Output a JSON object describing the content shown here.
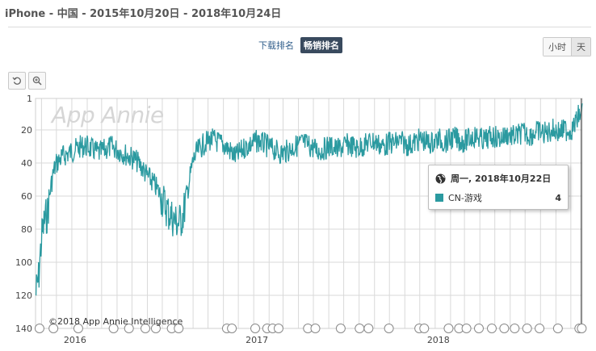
{
  "header": {
    "title": "iPhone - 中国 - 2015年10月20日 - 2018年10月24日"
  },
  "rank_tabs": [
    {
      "label": "下载排名",
      "active": false
    },
    {
      "label": "畅销排名",
      "active": true
    }
  ],
  "time_toggle": [
    {
      "label": "小时",
      "selected": false
    },
    {
      "label": "天",
      "selected": true
    }
  ],
  "toolbar": {
    "reset_icon": "reset-icon",
    "zoom_icon": "zoom-icon"
  },
  "watermark": "App Annie",
  "copyright": "©2018 App Annie Intelligence",
  "tooltip": {
    "date": "周一, 2018年10月22日",
    "series_name": "CN-游戏",
    "value": "4",
    "icon": "globe-icon"
  },
  "colors": {
    "series": "#2b9aa0",
    "grid": "#d9d9d9",
    "axis": "#cfcfcf",
    "tooltip_border": "#bdbdbd"
  },
  "chart_data": {
    "type": "line",
    "series": [
      {
        "name": "CN-游戏",
        "start": "2015-10-20",
        "end": "2018-10-24",
        "ranks": [
          120,
          110,
          85,
          75,
          70,
          55,
          45,
          40,
          38,
          36,
          35,
          34,
          33,
          32,
          31,
          30,
          30,
          30,
          31,
          32,
          33,
          34,
          33,
          32,
          31,
          30,
          31,
          32,
          33,
          34,
          35,
          36,
          37,
          38,
          40,
          42,
          45,
          48,
          50,
          52,
          55,
          58,
          62,
          66,
          70,
          72,
          75,
          76,
          75,
          70,
          60,
          50,
          40,
          35,
          32,
          30,
          28,
          27,
          26,
          26,
          27,
          28,
          29,
          30,
          32,
          34,
          36,
          35,
          33,
          31,
          30,
          29,
          28,
          27,
          27,
          28,
          29,
          30,
          31,
          32,
          33,
          34,
          34,
          33,
          32,
          31,
          30,
          29,
          28,
          28,
          29,
          30,
          31,
          32,
          33,
          32,
          31,
          30,
          30,
          31,
          32,
          31,
          30,
          29,
          29,
          30,
          31,
          31,
          30,
          29,
          28,
          27,
          27,
          28,
          29,
          30,
          29,
          28,
          28,
          28,
          27,
          27,
          28,
          29,
          29,
          28,
          27,
          26,
          26,
          27,
          28,
          28,
          27,
          26,
          26,
          27,
          27,
          26,
          25,
          25,
          26,
          27,
          27,
          26,
          25,
          24,
          24,
          25,
          26,
          26,
          25,
          24,
          24,
          25,
          25,
          24,
          23,
          23,
          24,
          24,
          23,
          22,
          22,
          23,
          23,
          22,
          21,
          21,
          22,
          22,
          21,
          20,
          20,
          21,
          21,
          20,
          20,
          20,
          19,
          15,
          10,
          4
        ],
        "rank_dates": "weekly samples from start to end, approximated from the plotted line"
      }
    ],
    "x_tick_labels": [
      "2016",
      "2017",
      "2018"
    ],
    "x_ticks": [
      "2016-01-01",
      "2017-01-01",
      "2018-01-01"
    ],
    "y_tick_labels": [
      "1",
      "20",
      "40",
      "60",
      "80",
      "100",
      "120",
      "140"
    ],
    "y_ticks": [
      1,
      20,
      40,
      60,
      80,
      100,
      120,
      140
    ],
    "ylim": [
      1,
      140
    ],
    "y_inverted": true,
    "grid": true,
    "crosshair_date": "2018-10-22"
  }
}
